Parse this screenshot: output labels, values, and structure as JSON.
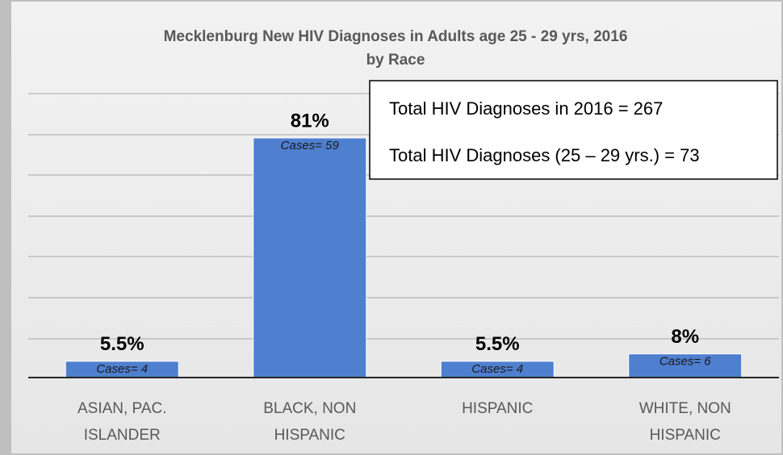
{
  "chart_data": {
    "type": "bar",
    "title": "Mecklenburg New HIV Diagnoses in Adults age 25 - 29 yrs, 2016",
    "subtitle": "by Race",
    "categories": [
      "ASIAN, PAC. ISLANDER",
      "BLACK, NON HISPANIC",
      "HISPANIC",
      "WHITE, NON HISPANIC"
    ],
    "values": [
      5.5,
      81,
      5.5,
      8
    ],
    "value_labels": [
      "5.5%",
      "81%",
      "5.5%",
      "8%"
    ],
    "case_labels": [
      "Cases= 4",
      "Cases= 59",
      "Cases= 4",
      "Cases= 6"
    ],
    "color": "#4f7fcf",
    "ylim": [
      0,
      96
    ],
    "annotations": [
      "Total HIV Diagnoses in 2016 = 267",
      "Total HIV Diagnoses (25 – 29 yrs.)  = 73"
    ]
  }
}
